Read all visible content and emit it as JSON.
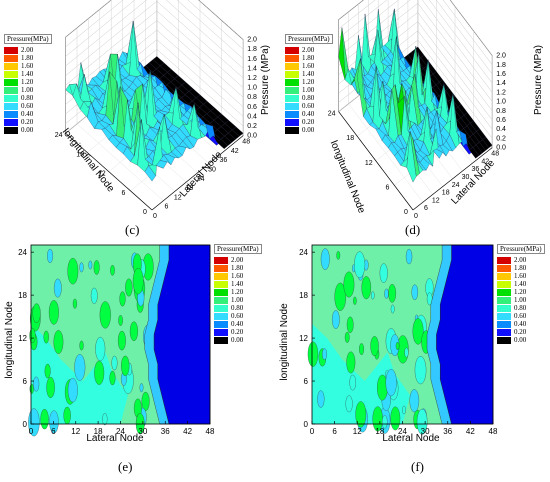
{
  "panels": [
    {
      "id": "c",
      "label": "(c)"
    },
    {
      "id": "d",
      "label": "(d)"
    },
    {
      "id": "e",
      "label": "(e)"
    },
    {
      "id": "f",
      "label": "(f)"
    }
  ],
  "legend": {
    "title": "Pressure(MPa)",
    "levels": [
      "2.00",
      "1.80",
      "1.60",
      "1.40",
      "1.20",
      "1.00",
      "0.80",
      "0.60",
      "0.40",
      "0.20",
      "0.00"
    ],
    "colors": [
      "#d40000",
      "#ff5a00",
      "#ffc800",
      "#c8ff00",
      "#00e000",
      "#33f07a",
      "#33ffcc",
      "#33dcff",
      "#0a8cff",
      "#1010ff",
      "#000000"
    ]
  },
  "colors": {
    "low": "#0000e6",
    "mid": "#6ef0a8",
    "high": "#00ff40"
  },
  "chart_data": [
    {
      "type": "surface3d",
      "panel": "(c)",
      "xlabel": "Lateral Node",
      "ylabel": "longitudinal Node",
      "zlabel": "Pressure (MPa)",
      "x_ticks": [
        "0",
        "6",
        "12",
        "18",
        "24",
        "30",
        "36",
        "42",
        "48"
      ],
      "y_ticks": [
        "0",
        "6",
        "12",
        "18",
        "24"
      ],
      "z_ticks": [
        "0.0",
        "0.2",
        "0.4",
        "0.6",
        "0.8",
        "1.0",
        "1.2",
        "1.4",
        "1.6",
        "1.8",
        "2.0"
      ],
      "xlim": [
        0,
        48
      ],
      "ylim": [
        0,
        24
      ],
      "zlim": [
        0,
        2.0
      ]
    },
    {
      "type": "surface3d",
      "panel": "(d)",
      "xlabel": "Lateral Node",
      "ylabel": "longitudinal Node",
      "zlabel": "Pressure (MPa)",
      "x_ticks": [
        "0",
        "6",
        "12",
        "18",
        "24",
        "30",
        "36",
        "42",
        "48"
      ],
      "y_ticks": [
        "0",
        "6",
        "12",
        "18",
        "24"
      ],
      "z_ticks": [
        "0.0",
        "0.2",
        "0.4",
        "0.6",
        "0.8",
        "1.0",
        "1.2",
        "1.4",
        "1.6",
        "1.8",
        "2.0"
      ],
      "xlim": [
        0,
        48
      ],
      "ylim": [
        0,
        24
      ],
      "zlim": [
        0,
        2.0
      ]
    },
    {
      "type": "heatmap",
      "panel": "(e)",
      "xlabel": "Lateral Node",
      "ylabel": "longitudinal Node",
      "x_ticks": [
        "0",
        "6",
        "12",
        "18",
        "24",
        "30",
        "36",
        "42",
        "48"
      ],
      "y_ticks": [
        "0",
        "6",
        "12",
        "18",
        "24"
      ],
      "xlim": [
        0,
        48
      ],
      "ylim": [
        0,
        25
      ],
      "low_pressure_boundary_x": [
        37,
        37,
        36,
        35,
        34,
        34,
        33,
        33,
        34,
        34,
        35,
        36,
        37
      ]
    },
    {
      "type": "heatmap",
      "panel": "(f)",
      "xlabel": "Lateral Node",
      "ylabel": "longitudinal Node",
      "x_ticks": [
        "0",
        "6",
        "12",
        "18",
        "24",
        "30",
        "36",
        "42",
        "48"
      ],
      "y_ticks": [
        "0",
        "6",
        "12",
        "18",
        "24"
      ],
      "xlim": [
        0,
        48
      ],
      "ylim": [
        0,
        25
      ],
      "low_pressure_boundary_x": [
        37,
        37,
        36,
        35,
        34,
        34,
        33,
        33,
        34,
        34,
        35,
        36,
        37
      ]
    }
  ]
}
